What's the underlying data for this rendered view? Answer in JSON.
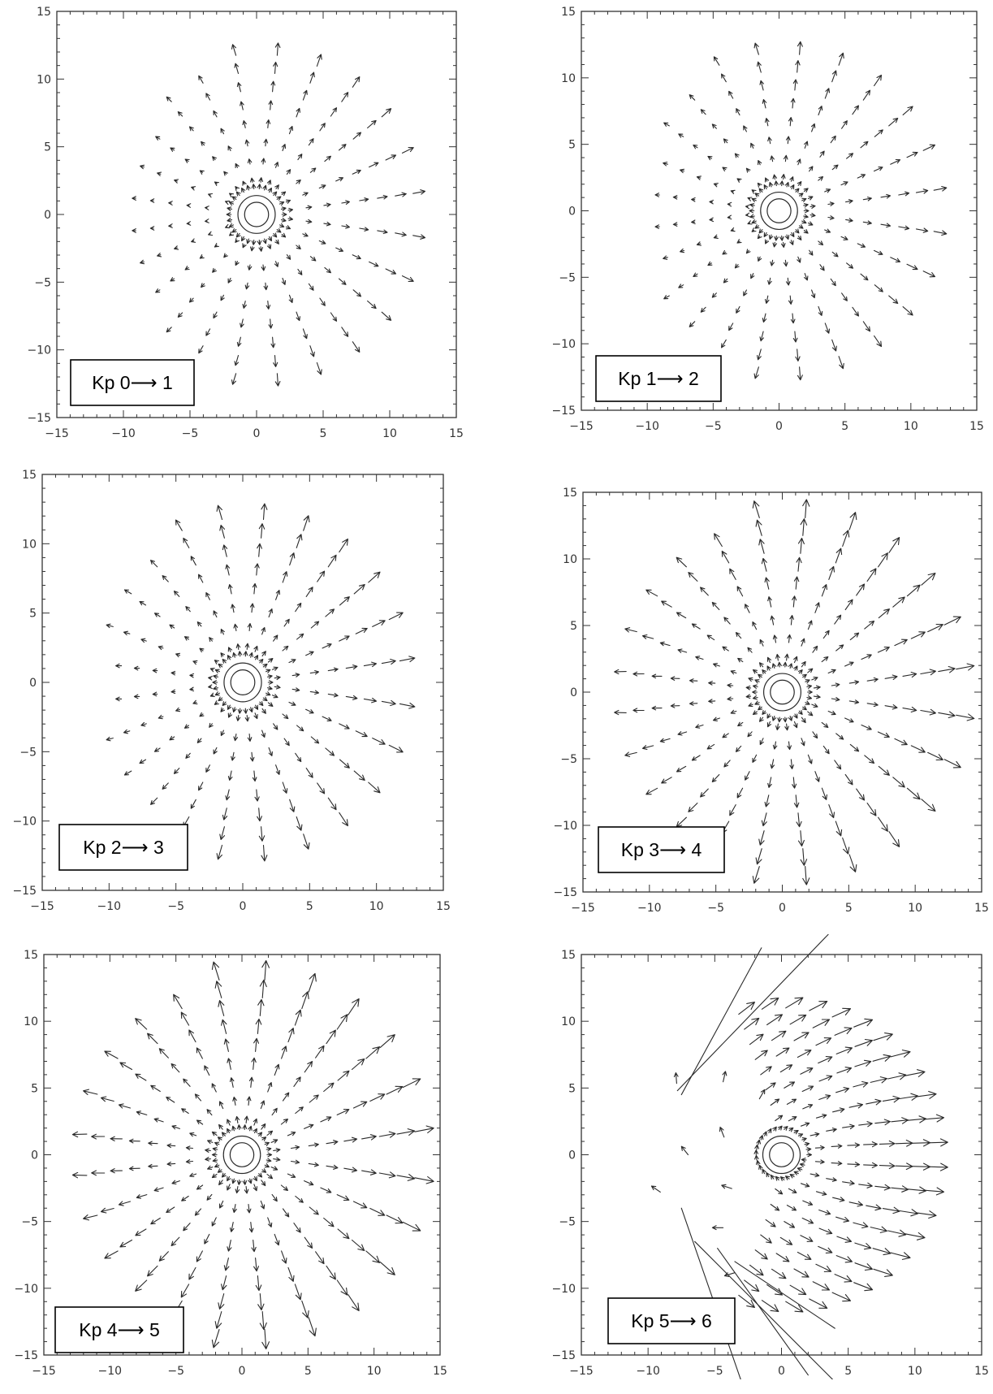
{
  "chart_data": [
    {
      "type": "quiver",
      "label": "Kp 0⟶ 1",
      "xlim": [
        -15,
        15
      ],
      "ylim": [
        -15,
        15
      ],
      "xticks": [
        -15,
        -10,
        -5,
        0,
        5,
        10,
        15
      ],
      "yticks": [
        -15,
        -10,
        -5,
        0,
        5,
        10,
        15
      ],
      "grid": false,
      "flow": {
        "regime": "radial",
        "inner_radius": 2.4,
        "outer_radius": 12.5,
        "strength": 0.55,
        "nightside_fade": 0.65
      }
    },
    {
      "type": "quiver",
      "label": "Kp 1⟶ 2",
      "xlim": [
        -15,
        15
      ],
      "ylim": [
        -15,
        15
      ],
      "xticks": [
        -15,
        -10,
        -5,
        0,
        5,
        10,
        15
      ],
      "yticks": [
        -15,
        -10,
        -5,
        0,
        5,
        10,
        15
      ],
      "grid": false,
      "flow": {
        "regime": "radial",
        "inner_radius": 2.4,
        "outer_radius": 13,
        "strength": 0.6,
        "nightside_fade": 0.6
      }
    },
    {
      "type": "quiver",
      "label": "Kp 2⟶ 3",
      "xlim": [
        -15,
        15
      ],
      "ylim": [
        -15,
        15
      ],
      "xticks": [
        -15,
        -10,
        -5,
        0,
        5,
        10,
        15
      ],
      "yticks": [
        -15,
        -10,
        -5,
        0,
        5,
        10,
        15
      ],
      "grid": false,
      "flow": {
        "regime": "radial",
        "inner_radius": 2.4,
        "outer_radius": 13,
        "strength": 0.7,
        "nightside_fade": 0.55
      }
    },
    {
      "type": "quiver",
      "label": "Kp 3⟶ 4",
      "xlim": [
        -15,
        15
      ],
      "ylim": [
        -15,
        15
      ],
      "xticks": [
        -15,
        -10,
        -5,
        0,
        5,
        10,
        15
      ],
      "yticks": [
        -15,
        -10,
        -5,
        0,
        5,
        10,
        15
      ],
      "grid": false,
      "flow": {
        "regime": "radial",
        "inner_radius": 2.4,
        "outer_radius": 13.5,
        "strength": 0.8,
        "nightside_fade": 0.3
      }
    },
    {
      "type": "quiver",
      "label": "Kp 4⟶ 5",
      "xlim": [
        -15,
        15
      ],
      "ylim": [
        -15,
        15
      ],
      "xticks": [
        -15,
        -10,
        -5,
        0,
        5,
        10,
        15
      ],
      "yticks": [
        -15,
        -10,
        -5,
        0,
        5,
        10,
        15
      ],
      "grid": false,
      "flow": {
        "regime": "radial",
        "inner_radius": 2.4,
        "outer_radius": 13.5,
        "strength": 0.85,
        "nightside_fade": 0.2
      }
    },
    {
      "type": "quiver",
      "label": "Kp 5⟶ 6",
      "xlim": [
        -15,
        15
      ],
      "ylim": [
        -15,
        15
      ],
      "xticks": [
        -15,
        -10,
        -5,
        0,
        5,
        10,
        15
      ],
      "yticks": [
        -15,
        -10,
        -5,
        0,
        5,
        10,
        15
      ],
      "grid": false,
      "flow": {
        "regime": "sunward",
        "inner_radius": 2.4,
        "outer_radius": 12,
        "strength": 0.8,
        "nightside_fade": 0.0
      }
    }
  ]
}
